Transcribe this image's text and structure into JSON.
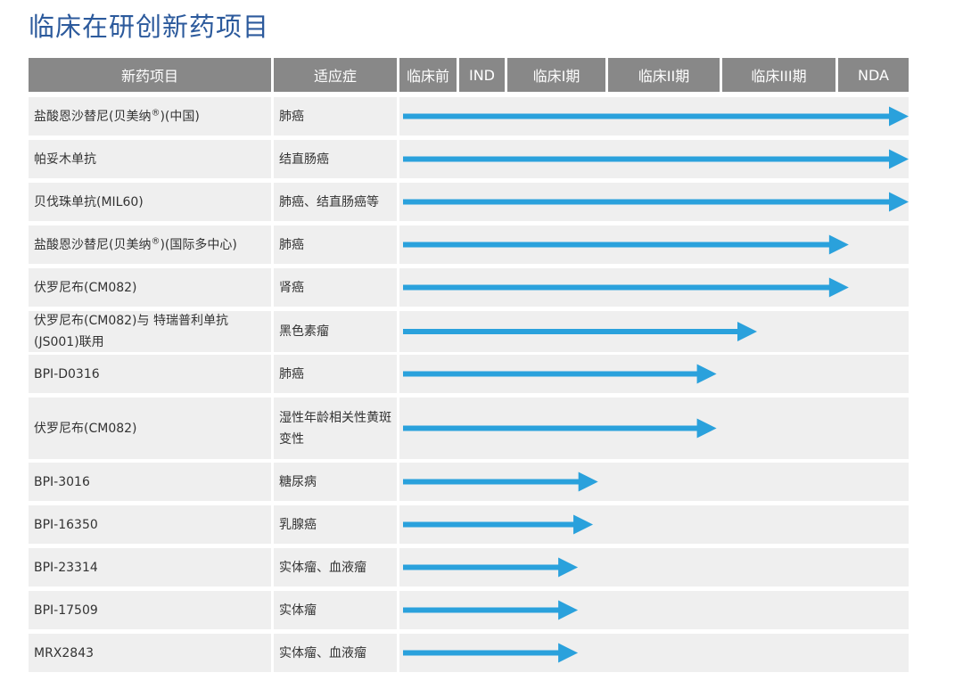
{
  "title": "临床在研创新药项目",
  "header": {
    "drug": "新药项目",
    "indication": "适应症",
    "stages": [
      "临床前",
      "IND",
      "临床I期",
      "临床II期",
      "临床III期",
      "NDA"
    ]
  },
  "colors": {
    "header_bg": "#888888",
    "row_bg": "#efefef",
    "arrow": "#2aa1dc",
    "title": "#2c5a9c"
  },
  "chart_data": {
    "type": "bar",
    "orientation": "horizontal",
    "title": "临床在研创新药项目",
    "stage_axis": [
      "临床前",
      "IND",
      "临床I期",
      "临床II期",
      "临床III期",
      "NDA"
    ],
    "progress_scale_note": "progress in stage units: 0 = start of 临床前, 6 = end of NDA",
    "rows": [
      {
        "drug": "盐酸恩沙替尼(贝美纳",
        "drug_sup": "®",
        "drug_suffix": ")(中国)",
        "indication": "肺癌",
        "progress": 6.0
      },
      {
        "drug": "帕妥木单抗",
        "drug_sup": "",
        "drug_suffix": "",
        "indication": "结直肠癌",
        "progress": 6.0
      },
      {
        "drug": "贝伐珠单抗(MIL60)",
        "drug_sup": "",
        "drug_suffix": "",
        "indication": "肺癌、结直肠癌等",
        "progress": 6.0
      },
      {
        "drug": "盐酸恩沙替尼(贝美纳",
        "drug_sup": "®",
        "drug_suffix": ")(国际多中心)",
        "indication": "肺癌",
        "progress": 5.15
      },
      {
        "drug": "伏罗尼布(CM082)",
        "drug_sup": "",
        "drug_suffix": "",
        "indication": "肾癌",
        "progress": 5.15
      },
      {
        "drug": "伏罗尼布(CM082)与 特瑞普利单抗(JS001)联用",
        "drug_sup": "",
        "drug_suffix": "",
        "indication": "黑色素瘤",
        "progress": 4.3
      },
      {
        "drug": "BPI-D0316",
        "drug_sup": "",
        "drug_suffix": "",
        "indication": "肺癌",
        "progress": 3.95
      },
      {
        "drug": "伏罗尼布(CM082)",
        "drug_sup": "",
        "drug_suffix": "",
        "indication": "湿性年龄相关性黄斑变性",
        "progress": 3.95
      },
      {
        "drug": "BPI-3016",
        "drug_sup": "",
        "drug_suffix": "",
        "indication": "糖尿病",
        "progress": 2.9
      },
      {
        "drug": "BPI-16350",
        "drug_sup": "",
        "drug_suffix": "",
        "indication": "乳腺癌",
        "progress": 2.85
      },
      {
        "drug": "BPI-23314",
        "drug_sup": "",
        "drug_suffix": "",
        "indication": "实体瘤、血液瘤",
        "progress": 2.7
      },
      {
        "drug": "BPI-17509",
        "drug_sup": "",
        "drug_suffix": "",
        "indication": "实体瘤",
        "progress": 2.7
      },
      {
        "drug": "MRX2843",
        "drug_sup": "",
        "drug_suffix": "",
        "indication": "实体瘤、血液瘤",
        "progress": 2.7
      }
    ]
  }
}
